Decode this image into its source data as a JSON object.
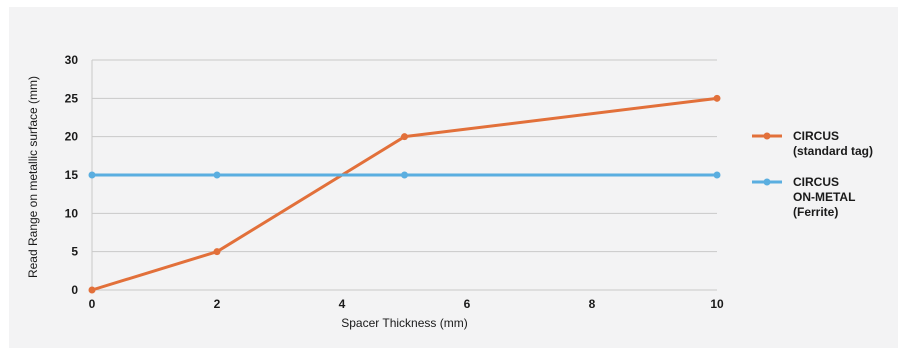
{
  "chart_data": {
    "type": "line",
    "title": "",
    "xlabel": "Spacer Thickness (mm)",
    "ylabel": "Read Range on metallic surface (mm)",
    "xlim": [
      0,
      10
    ],
    "ylim": [
      0,
      30
    ],
    "xticks": [
      0,
      2,
      4,
      6,
      8,
      10
    ],
    "yticks": [
      0,
      5,
      10,
      15,
      20,
      25,
      30
    ],
    "grid": "horizontal",
    "legend_position": "right",
    "series": [
      {
        "name_lines": [
          "CIRCUS",
          "(standard tag)"
        ],
        "color": "#e2703a",
        "x": [
          0,
          2,
          5,
          10
        ],
        "y": [
          0,
          5,
          20,
          25
        ]
      },
      {
        "name_lines": [
          "CIRCUS",
          "ON-METAL",
          "(Ferrite)"
        ],
        "color": "#5aaee0",
        "x": [
          0,
          2,
          5,
          10
        ],
        "y": [
          15,
          15,
          15,
          15
        ]
      }
    ]
  }
}
